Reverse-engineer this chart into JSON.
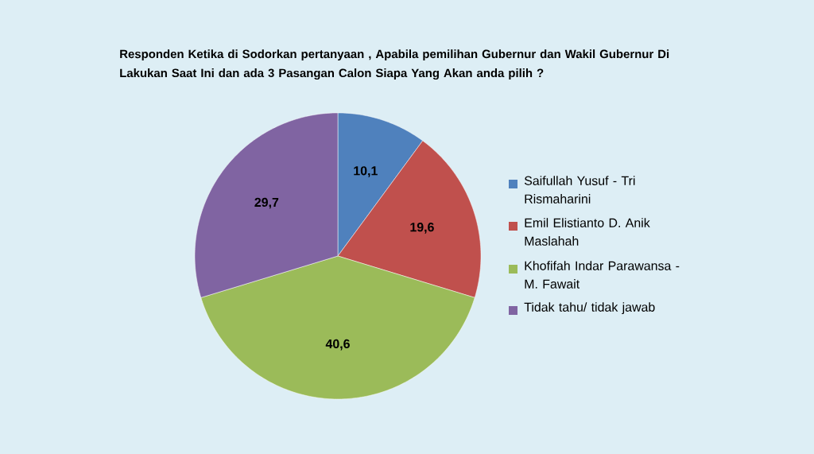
{
  "chart_data": {
    "type": "pie",
    "title": "Responden Ketika di Sodorkan pertanyaan , Apabila pemilihan Gubernur dan Wakil Gubernur Di Lakukan Saat Ini dan ada 3 Pasangan Calon Siapa Yang Akan anda pilih ?",
    "categories": [
      "Saifullah Yusuf - Tri Rismaharini",
      "Emil Elistianto D. Anik Maslahah",
      "Khofifah Indar Parawansa - M. Fawait",
      "Tidak tahu/ tidak jawab"
    ],
    "values": [
      10.1,
      19.6,
      40.6,
      29.7
    ],
    "value_labels": [
      "10,1",
      "19,6",
      "40,6",
      "29,7"
    ],
    "colors": [
      "#4f81bd",
      "#c0504d",
      "#9bbb59",
      "#8064a2"
    ],
    "legend": "right"
  }
}
